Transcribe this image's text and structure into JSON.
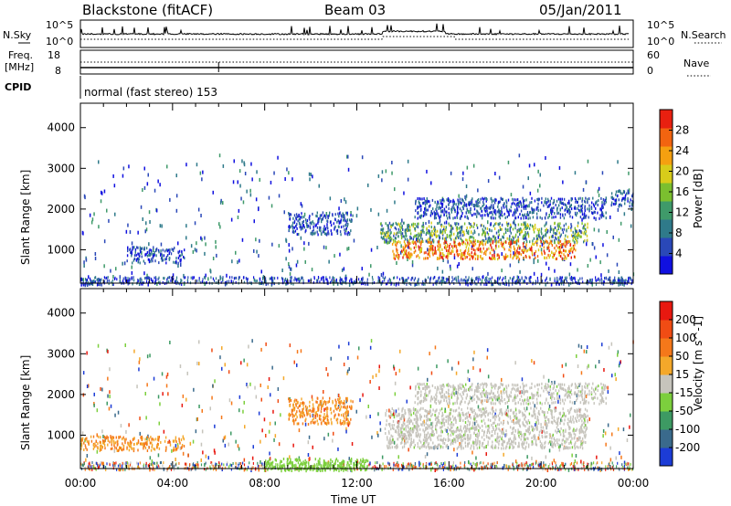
{
  "header": {
    "station": "Blackstone (fitACF)",
    "beam": "Beam 03",
    "date": "05/Jan/2011"
  },
  "top_panels": {
    "nsky_label": "N.Sky",
    "nsky_ticks": [
      "10^5",
      "10^0"
    ],
    "nsearch_label": "N.Search",
    "nsearch_ticks": [
      "10^5",
      "10^0"
    ],
    "freq_label": "Freq.",
    "freq_unit": "[MHz]",
    "freq_ticks": [
      "18",
      "8"
    ],
    "nave_label": "Nave",
    "nave_ticks": [
      "60",
      "0"
    ],
    "cpid_label": "CPID",
    "cpid_text": "normal (fast stereo) 153"
  },
  "chart_data": [
    {
      "type": "heatmap",
      "name": "power-panel",
      "ylabel": "Slant Range [km]",
      "xlabel": "",
      "x_ticks": [
        "00:00",
        "04:00",
        "08:00",
        "12:00",
        "16:00",
        "20:00",
        "00:00"
      ],
      "x_range_hours": [
        0,
        24
      ],
      "y_ticks": [
        1000,
        2000,
        3000,
        4000
      ],
      "y_range_km": [
        180,
        4600
      ],
      "colorbar": {
        "label": "Power [dB]",
        "ticks": [
          "28",
          "24",
          "20",
          "16",
          "12",
          "8",
          "4"
        ],
        "range": [
          0,
          30
        ],
        "colors": [
          "#1010e0",
          "#2a48b8",
          "#2f7a8a",
          "#3f9a6a",
          "#7bbf2f",
          "#d8cc1a",
          "#f5a010",
          "#f26410",
          "#e82010"
        ]
      },
      "regions": [
        {
          "t0": 13.0,
          "t1": 22.0,
          "r0": 1200,
          "r1": 1700,
          "level": "medium"
        },
        {
          "t0": 13.5,
          "t1": 21.5,
          "r0": 800,
          "r1": 1250,
          "level": "high"
        },
        {
          "t0": 14.5,
          "t1": 22.8,
          "r0": 1800,
          "r1": 2300,
          "level": "low"
        },
        {
          "t0": 9.0,
          "t1": 11.8,
          "r0": 1400,
          "r1": 1950,
          "level": "low"
        },
        {
          "t0": 2.0,
          "t1": 4.5,
          "r0": 700,
          "r1": 1100,
          "level": "low"
        },
        {
          "t0": 0.0,
          "t1": 1.0,
          "r0": 150,
          "r1": 350,
          "level": "low"
        },
        {
          "t0": 23.3,
          "t1": 24.0,
          "r0": 150,
          "r1": 350,
          "level": "low"
        },
        {
          "t0": 23.0,
          "t1": 24.0,
          "r0": 2100,
          "r1": 2500,
          "level": "low"
        }
      ]
    },
    {
      "type": "heatmap",
      "name": "velocity-panel",
      "ylabel": "Slant Range [km]",
      "xlabel": "Time UT",
      "x_ticks": [
        "00:00",
        "04:00",
        "08:00",
        "12:00",
        "16:00",
        "20:00",
        "00:00"
      ],
      "x_range_hours": [
        0,
        24
      ],
      "y_ticks": [
        1000,
        2000,
        3000,
        4000
      ],
      "y_range_km": [
        180,
        4600
      ],
      "colorbar": {
        "label": "Velocity [m s^-1]",
        "ticks": [
          "200",
          "100",
          "50",
          "15",
          "-15",
          "-50",
          "-100",
          "-200"
        ],
        "colors": [
          "#1c3cd6",
          "#3a6a8c",
          "#3d9a63",
          "#7ccf3d",
          "#c6c4bc",
          "#f4a82a",
          "#f5781a",
          "#f04c14",
          "#e81810"
        ]
      },
      "regions": [
        {
          "t0": 13.2,
          "t1": 22.0,
          "r0": 700,
          "r1": 1700,
          "value": "ground"
        },
        {
          "t0": 14.5,
          "t1": 22.8,
          "r0": 1800,
          "r1": 2300,
          "value": "ground"
        },
        {
          "t0": 9.0,
          "t1": 11.8,
          "r0": 1300,
          "r1": 1950,
          "value": "negative"
        },
        {
          "t0": 0.0,
          "t1": 4.5,
          "r0": 650,
          "r1": 1000,
          "value": "negative"
        },
        {
          "t0": 8.0,
          "t1": 12.5,
          "r0": 150,
          "r1": 450,
          "value": "positive"
        }
      ]
    }
  ]
}
